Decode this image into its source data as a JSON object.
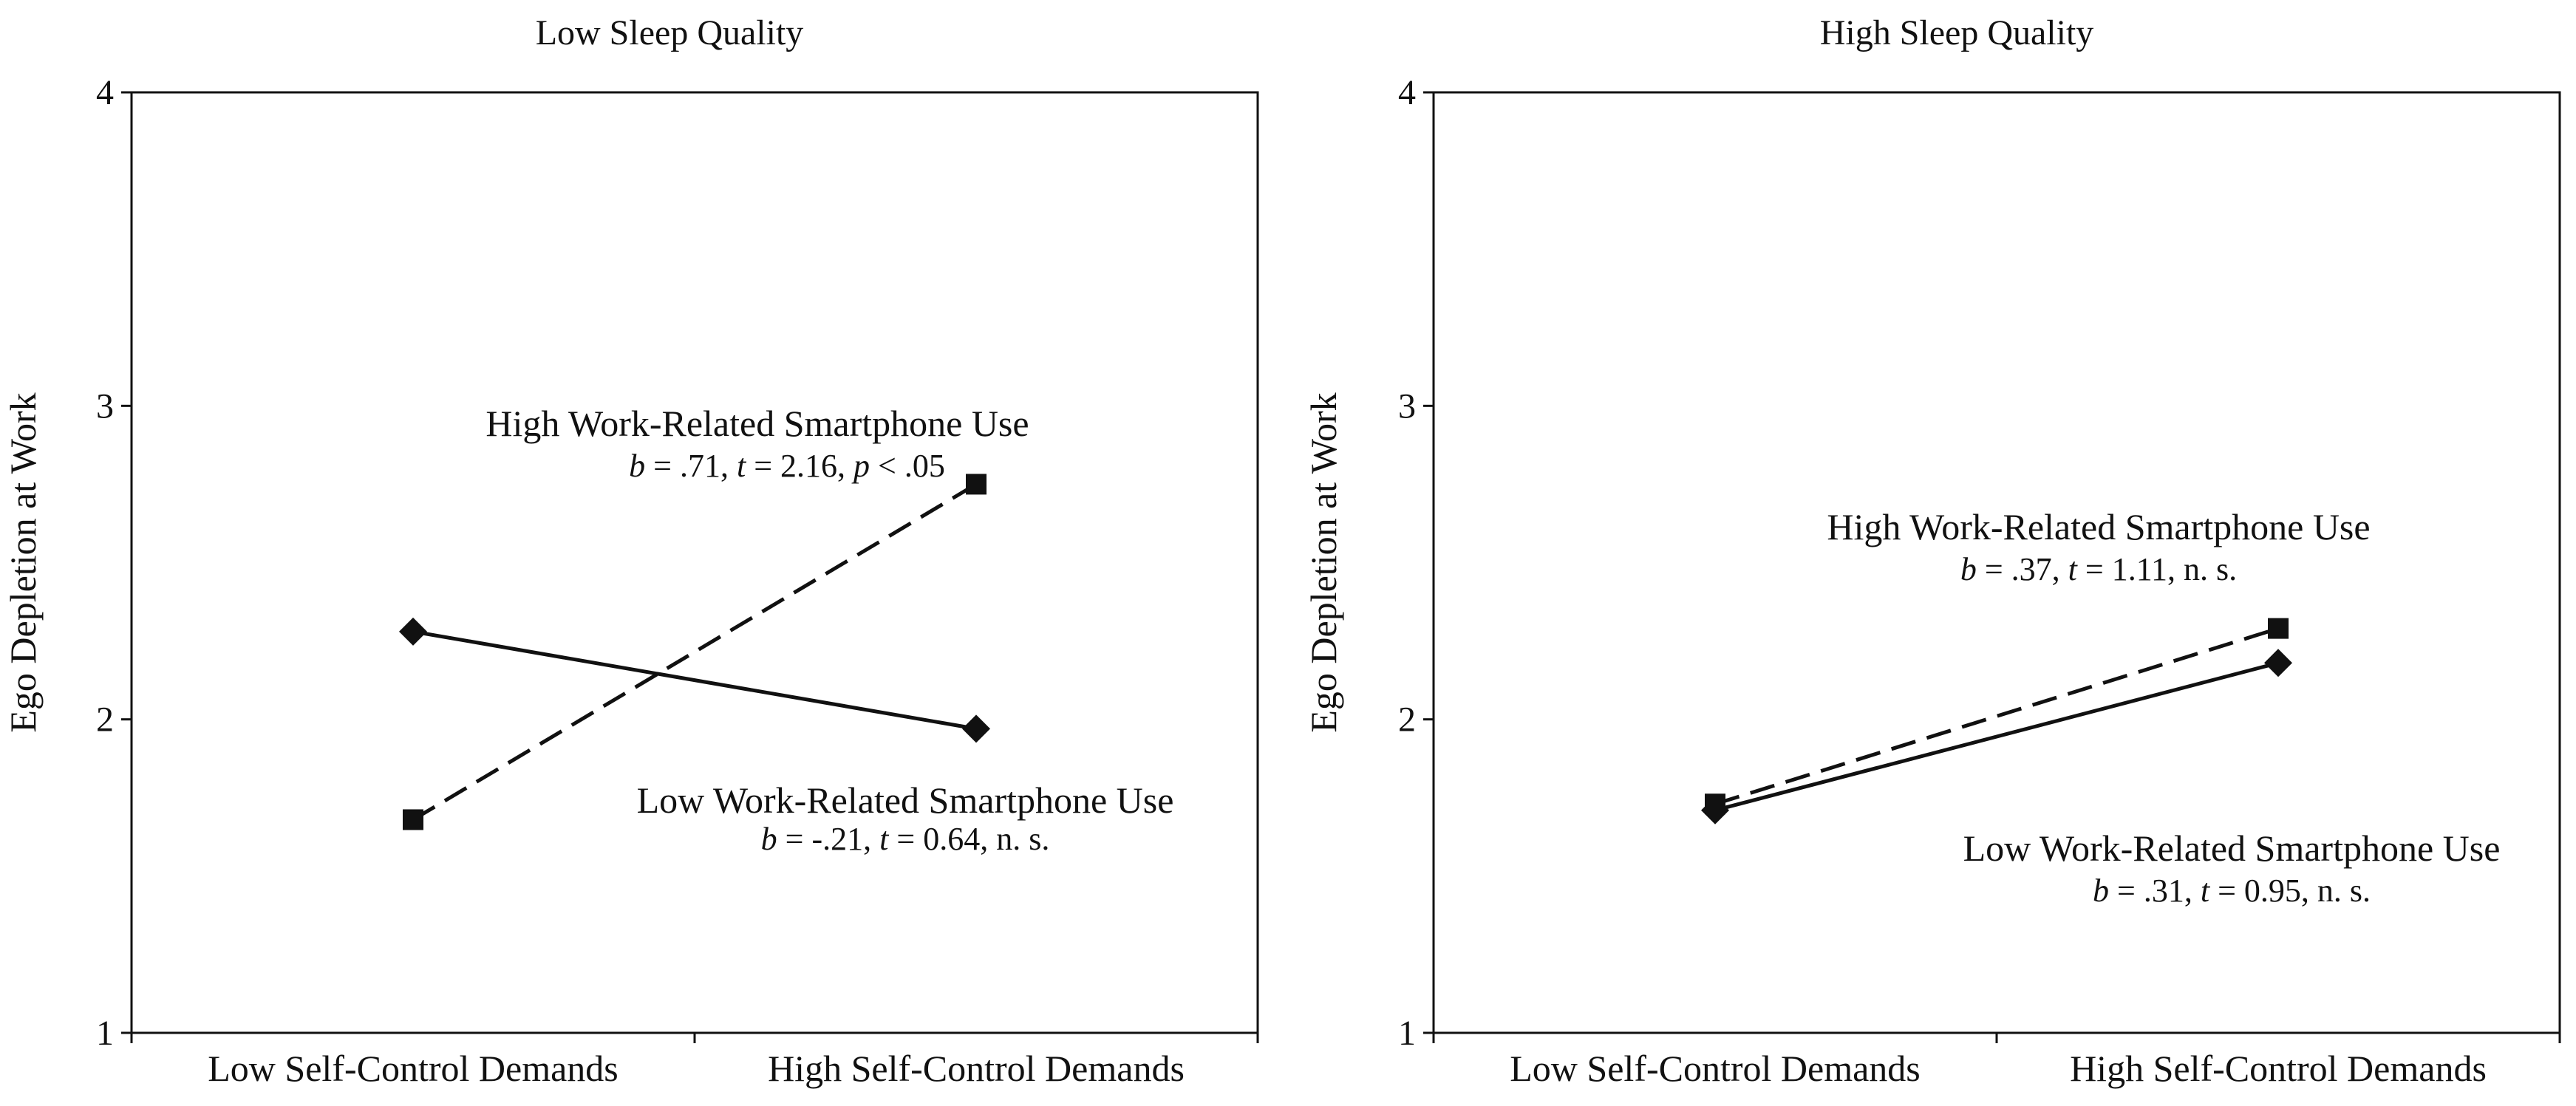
{
  "chart_data": [
    {
      "type": "line",
      "title": "Low Sleep Quality",
      "ylabel": "Ego Depletion at Work",
      "xlabel": "",
      "categories": [
        "Low Self-Control Demands",
        "High Self-Control Demands"
      ],
      "ylim": [
        1,
        4
      ],
      "yticks": [
        "1",
        "2",
        "3",
        "4"
      ],
      "grid": false,
      "series": [
        {
          "name": "High Work-Related Smartphone Use",
          "values": [
            1.68,
            2.75
          ],
          "line_style": "dashed",
          "marker": "square",
          "stat_parts": [
            {
              "text": "b",
              "italic": true
            },
            {
              "text": " = .71, ",
              "italic": false
            },
            {
              "text": "t",
              "italic": true
            },
            {
              "text": " = 2.16, ",
              "italic": false
            },
            {
              "text": "p",
              "italic": true
            },
            {
              "text": " < .05",
              "italic": false
            }
          ]
        },
        {
          "name": "Low Work-Related Smartphone Use",
          "values": [
            2.28,
            1.97
          ],
          "line_style": "solid",
          "marker": "diamond",
          "stat_parts": [
            {
              "text": "b",
              "italic": true
            },
            {
              "text": " = -.21, ",
              "italic": false
            },
            {
              "text": "t",
              "italic": true
            },
            {
              "text": " = 0.64, n. s.",
              "italic": false
            }
          ]
        }
      ]
    },
    {
      "type": "line",
      "title": "High Sleep Quality",
      "ylabel": "Ego Depletion at Work",
      "xlabel": "",
      "categories": [
        "Low Self-Control Demands",
        "High Self-Control Demands"
      ],
      "ylim": [
        1,
        4
      ],
      "yticks": [
        "1",
        "2",
        "3",
        "4"
      ],
      "grid": false,
      "series": [
        {
          "name": "High Work-Related Smartphone Use",
          "values": [
            1.73,
            2.29
          ],
          "line_style": "dashed",
          "marker": "square",
          "stat_parts": [
            {
              "text": "b",
              "italic": true
            },
            {
              "text": " = .37, ",
              "italic": false
            },
            {
              "text": "t",
              "italic": true
            },
            {
              "text": " = 1.11, n. s.",
              "italic": false
            }
          ]
        },
        {
          "name": "Low Work-Related Smartphone Use",
          "values": [
            1.71,
            2.18
          ],
          "line_style": "solid",
          "marker": "diamond",
          "stat_parts": [
            {
              "text": "b",
              "italic": true
            },
            {
              "text": " = .31, ",
              "italic": false
            },
            {
              "text": "t",
              "italic": true
            },
            {
              "text": " = 0.95, n. s.",
              "italic": false
            }
          ]
        }
      ]
    }
  ]
}
